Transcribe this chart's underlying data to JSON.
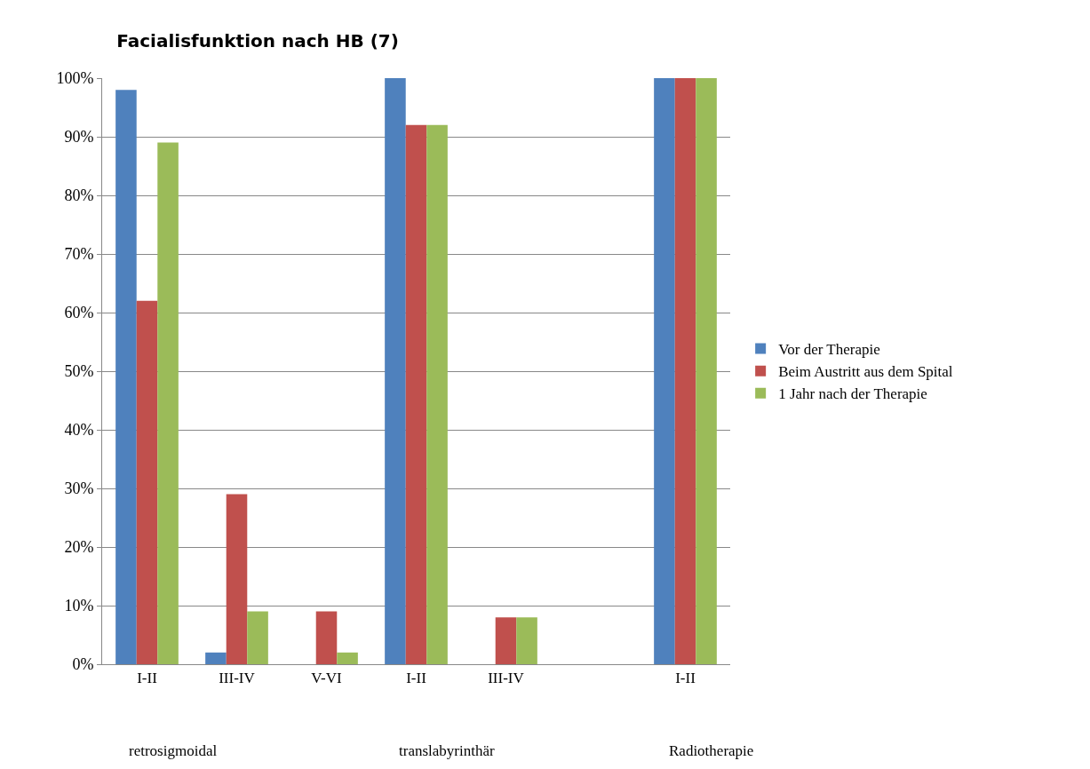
{
  "chart_data": {
    "type": "bar",
    "title": "Facialisfunktion nach HB (7)",
    "categories": [
      "I-II",
      "III-IV",
      "V-VI",
      "I-II",
      "III-IV",
      null,
      "I-II"
    ],
    "series": [
      {
        "name": "Vor der Therapie",
        "color": "#4f81bd",
        "values": [
          98,
          2,
          null,
          100,
          null,
          null,
          100
        ]
      },
      {
        "name": "Beim Austritt aus dem Spital",
        "color": "#c0504d",
        "values": [
          62,
          29,
          9,
          92,
          8,
          null,
          100
        ]
      },
      {
        "name": "1 Jahr nach der Therapie",
        "color": "#9bbb59",
        "values": [
          89,
          9,
          2,
          92,
          8,
          null,
          100
        ]
      }
    ],
    "ylim": [
      0,
      100
    ],
    "yticks": [
      {
        "value": 0,
        "label": "0%"
      },
      {
        "value": 10,
        "label": "10%"
      },
      {
        "value": 20,
        "label": "20%"
      },
      {
        "value": 30,
        "label": "30%"
      },
      {
        "value": 40,
        "label": "40%"
      },
      {
        "value": 50,
        "label": "50%"
      },
      {
        "value": 60,
        "label": "60%"
      },
      {
        "value": 70,
        "label": "70%"
      },
      {
        "value": 80,
        "label": "80%"
      },
      {
        "value": 90,
        "label": "90%"
      },
      {
        "value": 100,
        "label": "100%"
      }
    ],
    "annotations": [
      "retrosigmoidal",
      "translabyrinthär",
      "Radiotherapie"
    ],
    "grid": "y",
    "legend": "right"
  }
}
